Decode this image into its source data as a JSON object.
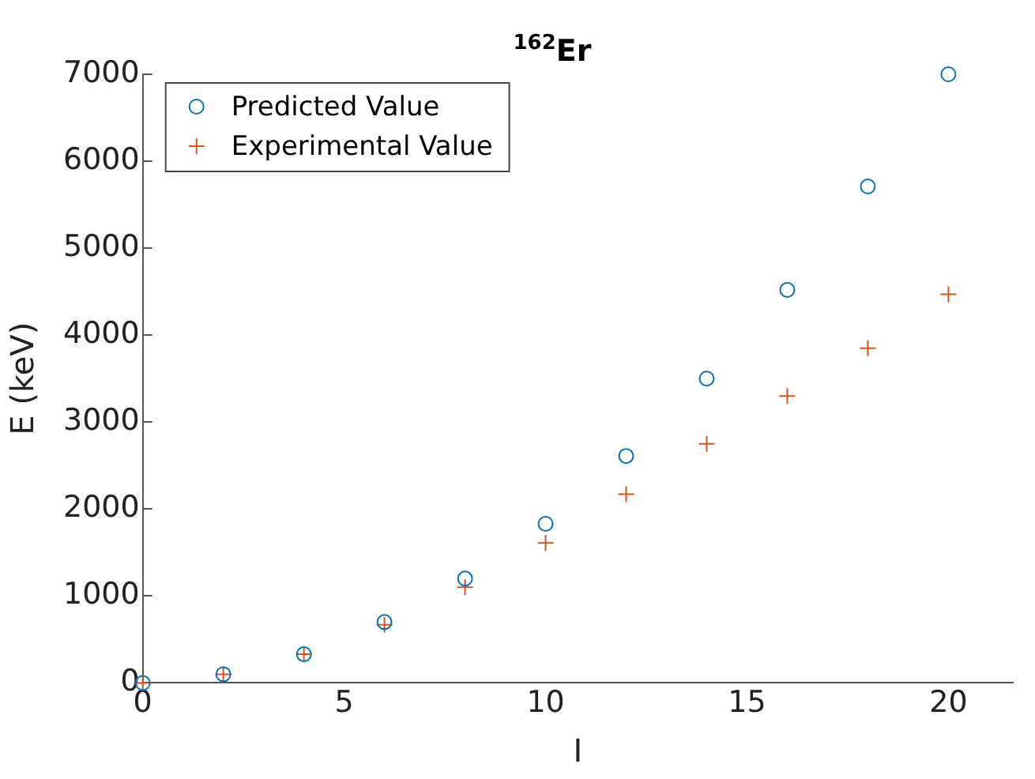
{
  "chart_data": {
    "type": "scatter",
    "title": "$^{162}$Er",
    "xlabel": "I",
    "ylabel": "E (keV)",
    "x": [
      0,
      2,
      4,
      6,
      8,
      10,
      12,
      14,
      16,
      18,
      20
    ],
    "series": [
      {
        "name": "Predicted Value",
        "color": "#0072bd",
        "marker": "circle",
        "values": [
          0,
          100,
          330,
          700,
          1200,
          1830,
          2610,
          3500,
          4520,
          5710,
          7000
        ]
      },
      {
        "name": "Experimental Value",
        "color": "#d95319",
        "marker": "cross",
        "values": [
          0,
          100,
          330,
          670,
          1100,
          1610,
          2170,
          2750,
          3300,
          3850,
          4470
        ]
      }
    ],
    "xlim": [
      0,
      21.6
    ],
    "xticks": [
      0,
      5,
      10,
      15,
      20
    ],
    "ylim": [
      0,
      7000
    ],
    "yticks": [
      0,
      1000,
      2000,
      3000,
      4000,
      5000,
      6000,
      7000
    ],
    "grid": false,
    "legend": "top left"
  }
}
